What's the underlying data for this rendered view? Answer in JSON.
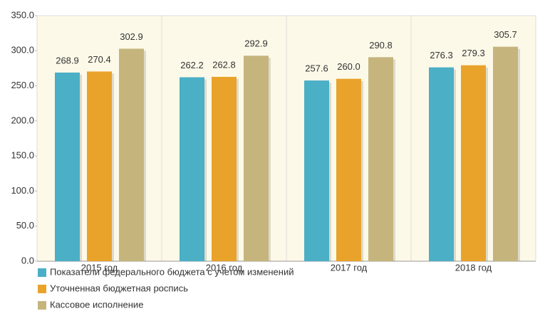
{
  "chart_data": {
    "type": "bar",
    "categories": [
      "2015 год",
      "2016 год",
      "2017 год",
      "2018 год"
    ],
    "series": [
      {
        "name": "Показатели федерального бюджета с учетом изменений",
        "color": "#4bafc6",
        "values": [
          268.9,
          262.2,
          257.6,
          276.3
        ],
        "value_labels": [
          "268.9",
          "262.2",
          "257.6",
          "276.3"
        ]
      },
      {
        "name": "Уточненная бюджетная роспись",
        "color": "#e9a32b",
        "values": [
          270.4,
          262.8,
          260.0,
          279.3
        ],
        "value_labels": [
          "270.4",
          "262.8",
          "260.0",
          "279.3"
        ]
      },
      {
        "name": "Кассовое исполнение",
        "color": "#c5b57d",
        "values": [
          302.9,
          292.9,
          290.8,
          305.7
        ],
        "value_labels": [
          "302.9",
          "292.9",
          "290.8",
          "305.7"
        ]
      }
    ],
    "ylim": [
      0,
      350
    ],
    "yticks": [
      {
        "value": 0,
        "label": "0.0"
      },
      {
        "value": 50,
        "label": "50.0"
      },
      {
        "value": 100,
        "label": "100.0"
      },
      {
        "value": 150,
        "label": "150.0"
      },
      {
        "value": 200,
        "label": "200.0"
      },
      {
        "value": 250,
        "label": "250.0"
      },
      {
        "value": 300,
        "label": "300.0"
      },
      {
        "value": 350,
        "label": "350.0"
      }
    ]
  }
}
